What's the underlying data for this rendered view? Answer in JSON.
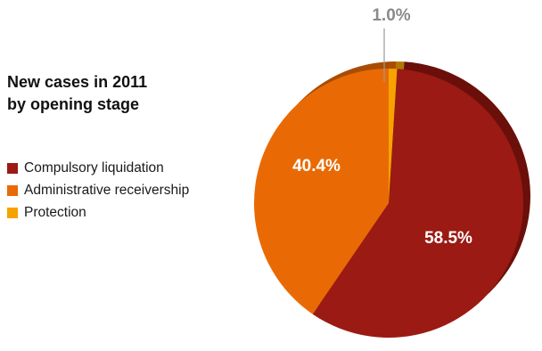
{
  "chart_data": {
    "type": "pie",
    "title": [
      "New cases in 2011",
      "by opening stage"
    ],
    "slices": [
      {
        "label": "Compulsory liquidation",
        "value": 58.5,
        "display": "58.5%",
        "color": "#9b1a14",
        "side_color": "#6b0f0a"
      },
      {
        "label": "Administrative receivership",
        "value": 40.4,
        "display": "40.4%",
        "color": "#e96a04",
        "side_color": "#a84c04"
      },
      {
        "label": "Protection",
        "value": 1.0,
        "display": "1.0%",
        "color": "#f6a300",
        "side_color": "#b07800"
      }
    ],
    "legend_position": "left"
  }
}
